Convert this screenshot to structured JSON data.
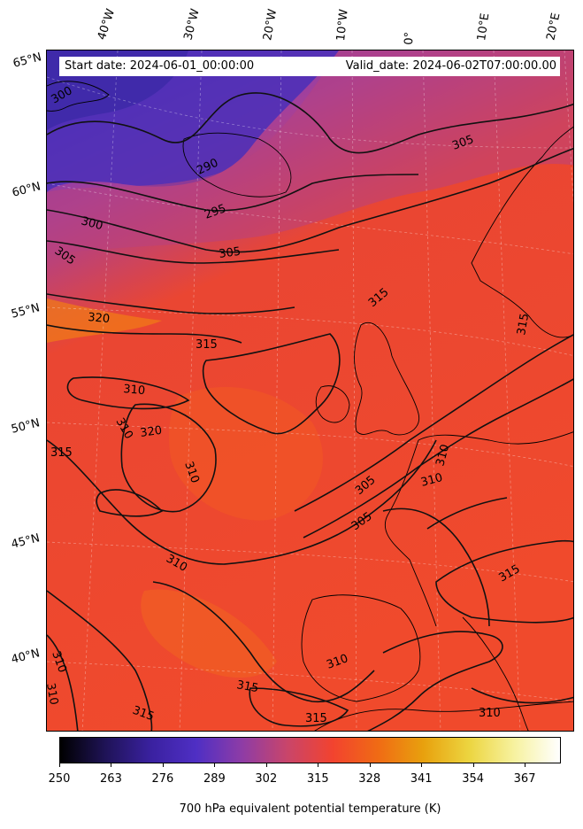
{
  "header": {
    "start_date": "Start date: 2024-06-01_00:00:00",
    "valid_date": "Valid_date: 2024-06-02T07:00:00.00"
  },
  "map": {
    "longitude_labels": [
      "40°W",
      "30°W",
      "20°W",
      "10°W",
      "0°",
      "10°E",
      "20°E"
    ],
    "latitude_labels": [
      "65°N",
      "60°N",
      "55°N",
      "50°N",
      "45°N",
      "40°N"
    ],
    "contour_labels": [
      "295",
      "300",
      "305",
      "305",
      "315",
      "320",
      "315",
      "310",
      "320",
      "315",
      "310",
      "310",
      "315",
      "310",
      "305",
      "305",
      "310",
      "310",
      "315",
      "310",
      "315",
      "315",
      "305",
      "290",
      "300",
      "310",
      "310",
      "315",
      "310"
    ],
    "colors": {
      "cold": "#4a2fb8",
      "mid": "#c4406a",
      "warm": "#f0482e",
      "hot": "#f27a16",
      "coast": "#000000"
    }
  },
  "colorbar": {
    "ticks": [
      "250",
      "263",
      "276",
      "289",
      "302",
      "315",
      "328",
      "341",
      "354",
      "367"
    ],
    "label": "700 hPa equivalent potential temperature (K)",
    "colors": [
      "#000000",
      "#1f1357",
      "#3a21a0",
      "#4f2fc4",
      "#8e3ca6",
      "#c9456a",
      "#f2432f",
      "#f06b14",
      "#e8a10e",
      "#ecd540",
      "#f7f2a0",
      "#ffffff"
    ]
  }
}
